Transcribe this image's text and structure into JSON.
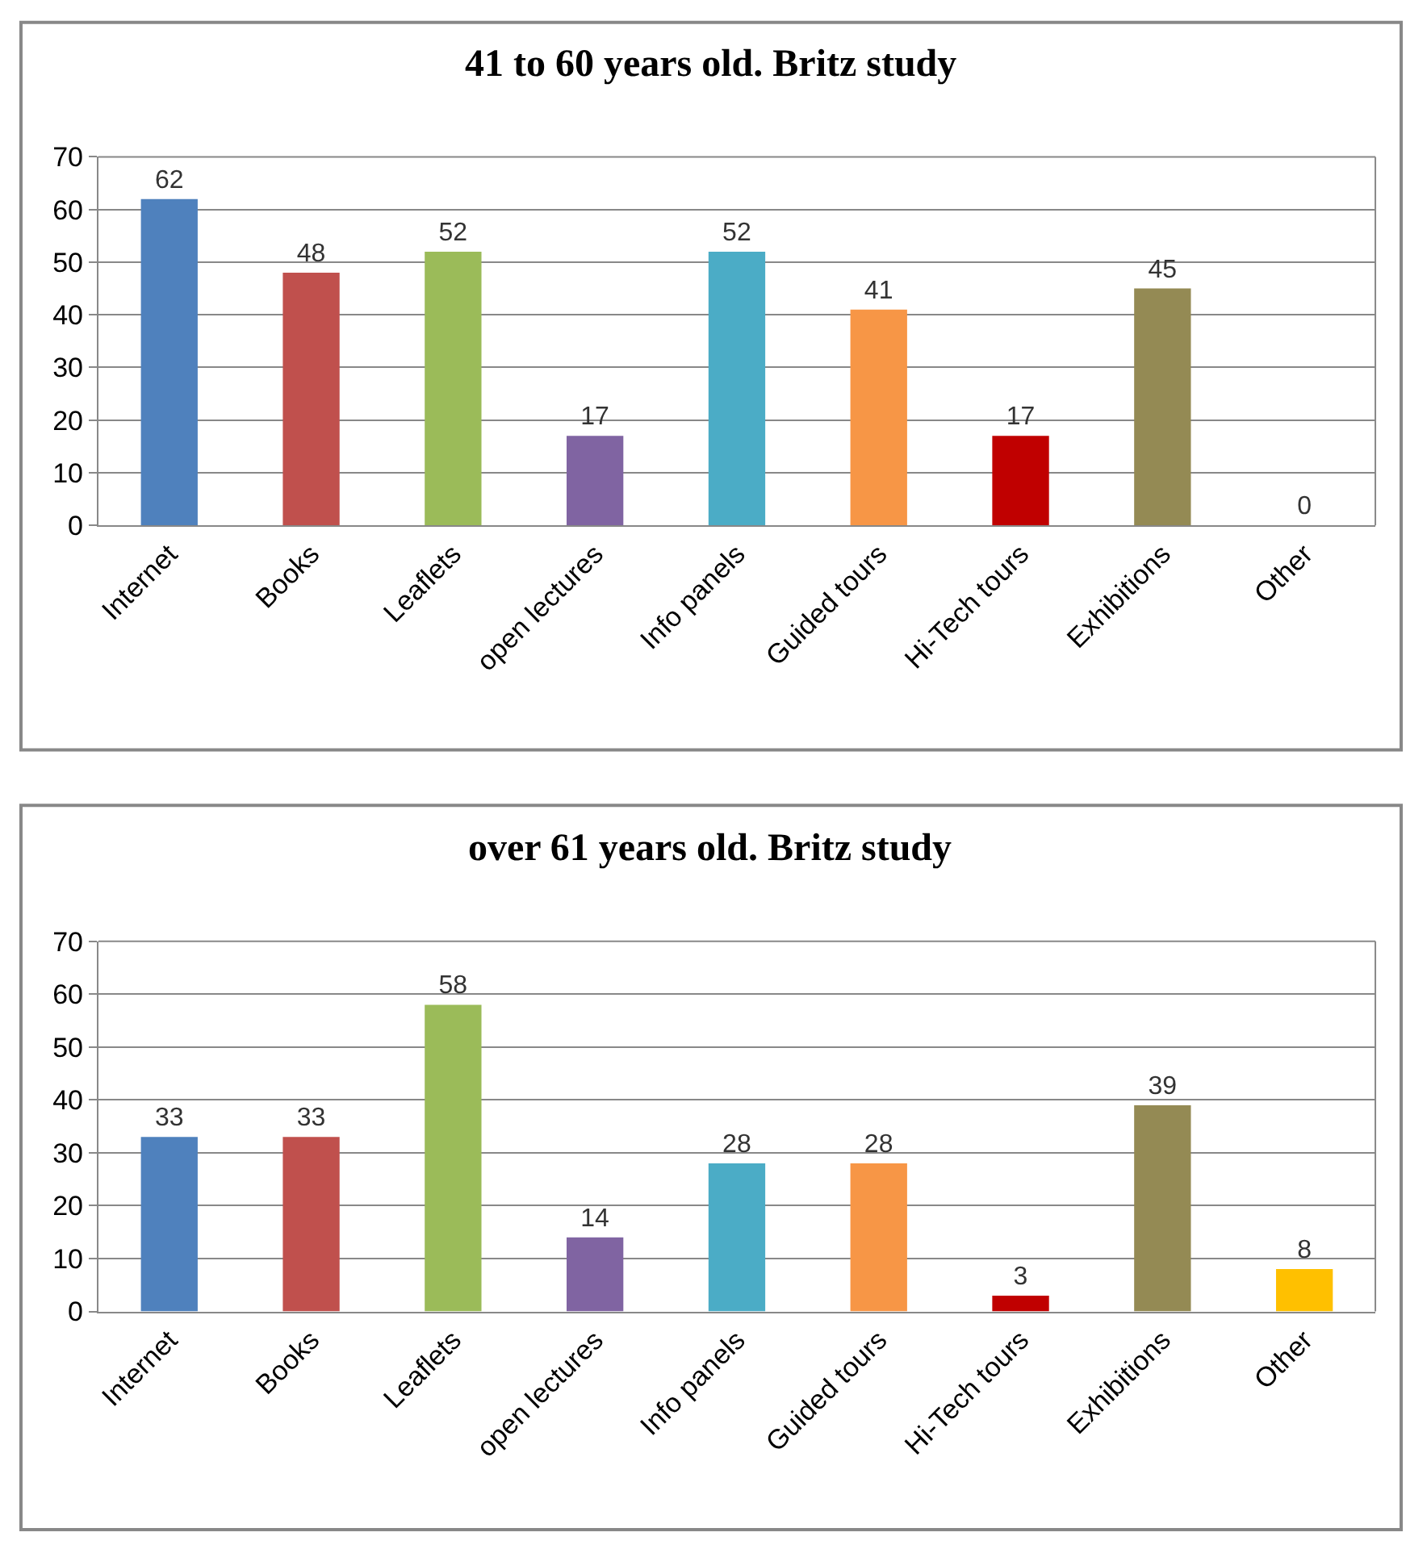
{
  "chart_data": [
    {
      "type": "bar",
      "title": "41 to 60 years old. Britz study",
      "categories": [
        "Internet",
        "Books",
        "Leaflets",
        "open lectures",
        "Info panels",
        "Guided tours",
        "Hi-Tech tours",
        "Exhibitions",
        "Other"
      ],
      "values": [
        62,
        48,
        52,
        17,
        52,
        41,
        17,
        45,
        0
      ],
      "colors": [
        "#4f81bd",
        "#c0504d",
        "#9bbb59",
        "#8064a2",
        "#4bacc6",
        "#f79646",
        "#c00000",
        "#948a54",
        "#ffc000"
      ],
      "ylim": [
        0,
        70
      ],
      "yticks": [
        0,
        10,
        20,
        30,
        40,
        50,
        60,
        70
      ],
      "grid": "y",
      "data_labels": true
    },
    {
      "type": "bar",
      "title": "over 61 years old. Britz study",
      "categories": [
        "Internet",
        "Books",
        "Leaflets",
        "open lectures",
        "Info panels",
        "Guided tours",
        "Hi-Tech tours",
        "Exhibitions",
        "Other"
      ],
      "values": [
        33,
        33,
        58,
        14,
        28,
        28,
        3,
        39,
        8
      ],
      "colors": [
        "#4f81bd",
        "#c0504d",
        "#9bbb59",
        "#8064a2",
        "#4bacc6",
        "#f79646",
        "#c00000",
        "#948a54",
        "#ffc000"
      ],
      "ylim": [
        0,
        70
      ],
      "yticks": [
        0,
        10,
        20,
        30,
        40,
        50,
        60,
        70
      ],
      "grid": "y",
      "data_labels": true
    }
  ]
}
